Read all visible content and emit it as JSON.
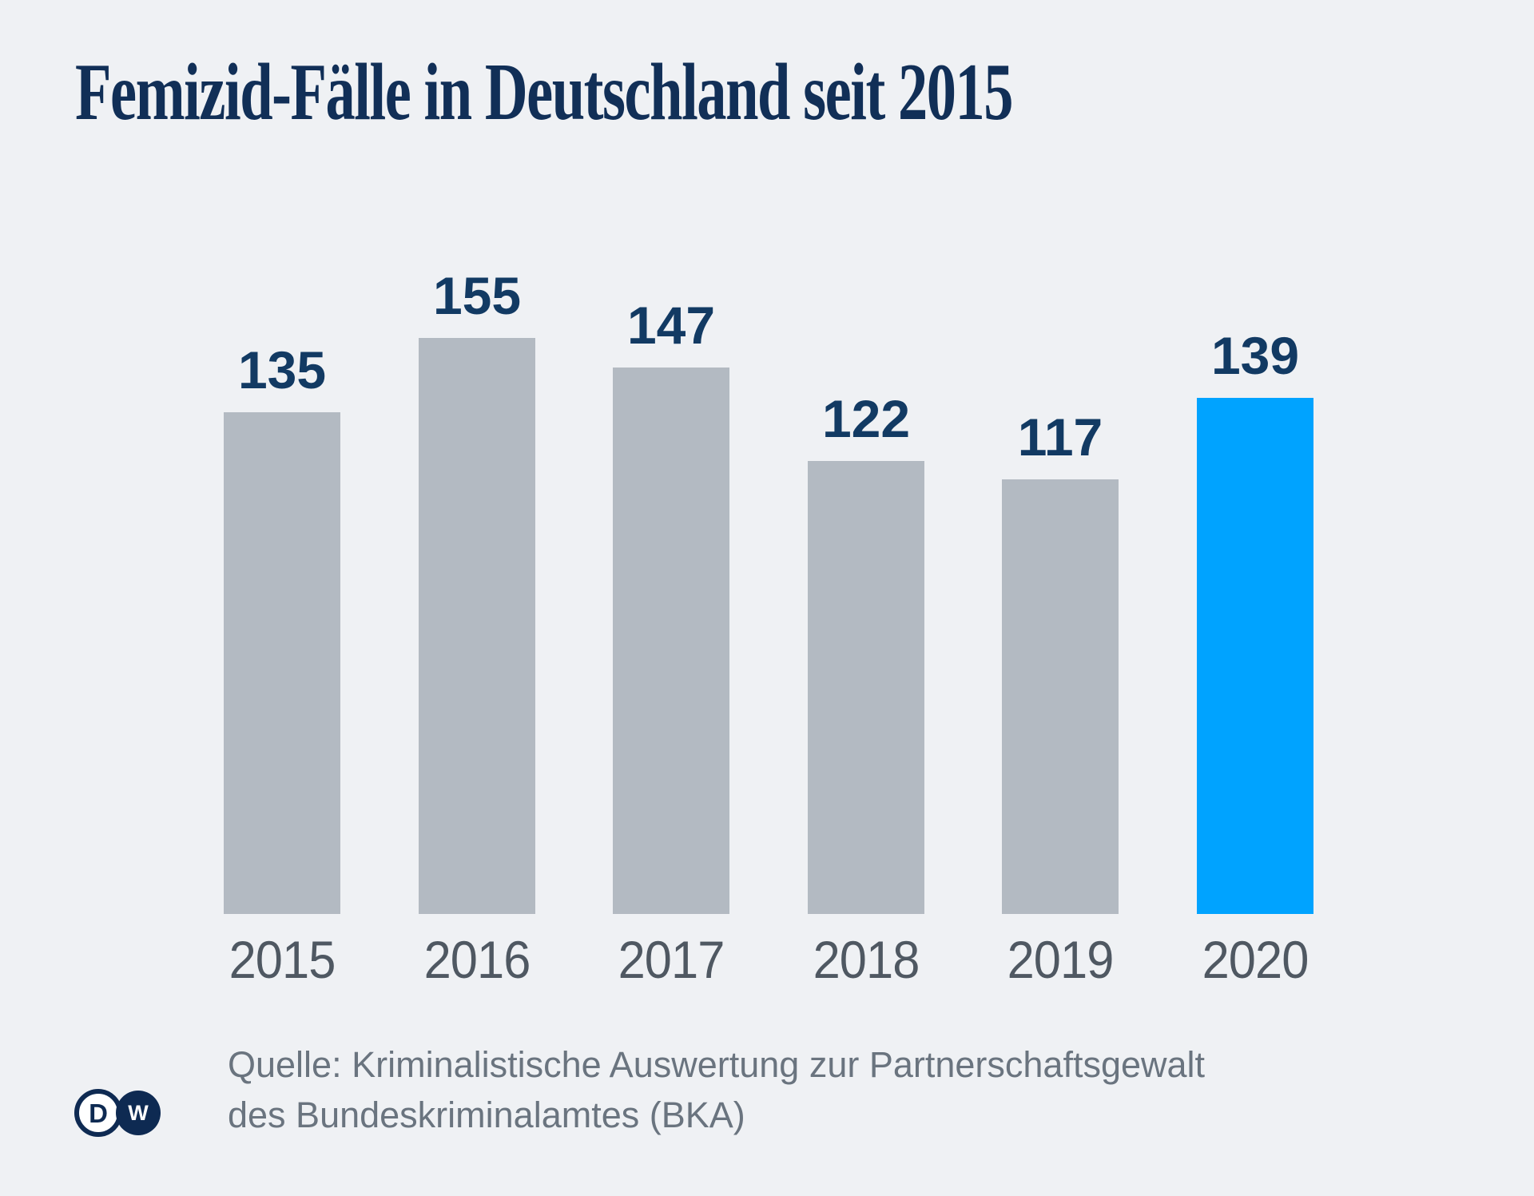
{
  "page": {
    "background_color": "#eff1f4"
  },
  "header": {
    "title": "Femizid-Fälle in Deutschland seit 2015",
    "title_color": "#112f57"
  },
  "chart_data": {
    "type": "bar",
    "title": "Femizid-Fälle in Deutschland seit 2015",
    "categories": [
      "2015",
      "2016",
      "2017",
      "2018",
      "2019",
      "2020"
    ],
    "values": [
      135,
      155,
      147,
      122,
      117,
      139
    ],
    "highlight_category": "2020",
    "value_labels_position": "above bars",
    "xlabel": "",
    "ylabel": "",
    "ylim": [
      0,
      160
    ],
    "grid": false,
    "legend": false,
    "axes_visible": false,
    "colors": {
      "bar": "#b3bac2",
      "highlight": "#00a3ff",
      "value_label": "#123a63",
      "year_label": "#4f5862"
    }
  },
  "source": {
    "line1": "Quelle: Kriminalistische Auswertung zur Partnerschaftsgewalt",
    "line2": "des Bundeskriminalamtes (BKA)",
    "color": "#6a747f"
  },
  "logo": {
    "name": "DW",
    "letters": [
      "D",
      "W"
    ],
    "color": "#0e2a52"
  }
}
